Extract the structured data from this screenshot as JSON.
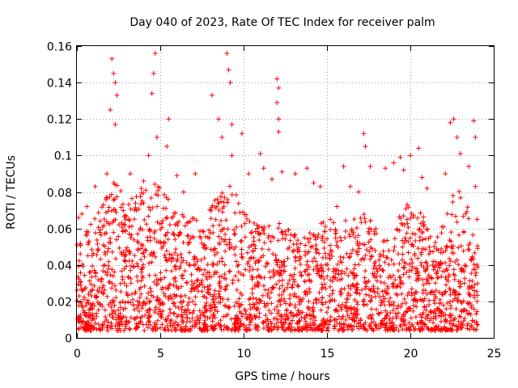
{
  "chart_data": {
    "type": "scatter",
    "title": "Day 040 of 2023, Rate Of TEC Index for receiver palm",
    "xlabel": "GPS time / hours",
    "ylabel": "ROTI / TECUs",
    "xlim": [
      0,
      25
    ],
    "ylim": [
      0,
      0.16
    ],
    "x_ticks": [
      0,
      5,
      10,
      15,
      20,
      25
    ],
    "x_tick_labels": [
      "0",
      "5",
      "10",
      "15",
      "20",
      "25"
    ],
    "y_ticks": [
      0,
      0.02,
      0.04,
      0.06,
      0.08,
      0.1,
      0.12,
      0.14,
      0.16
    ],
    "y_tick_labels": [
      "0",
      "0.02",
      "0.04",
      "0.06",
      "0.08",
      "0.1",
      "0.12",
      "0.14",
      "0.16"
    ],
    "grid": true,
    "marker": "plus",
    "color": "#ff0000",
    "series": [
      {
        "name": "ROTI",
        "points": [
          [
            0.1,
            0.066
          ],
          [
            0.3,
            0.068
          ],
          [
            0.6,
            0.072
          ],
          [
            1.1,
            0.083
          ],
          [
            1.8,
            0.09
          ],
          [
            2.0,
            0.125
          ],
          [
            2.1,
            0.153
          ],
          [
            2.2,
            0.145
          ],
          [
            2.3,
            0.14
          ],
          [
            2.4,
            0.133
          ],
          [
            2.3,
            0.117
          ],
          [
            3.2,
            0.09
          ],
          [
            4.0,
            0.086
          ],
          [
            4.3,
            0.1
          ],
          [
            4.5,
            0.134
          ],
          [
            4.6,
            0.145
          ],
          [
            4.7,
            0.156
          ],
          [
            4.8,
            0.11
          ],
          [
            5.5,
            0.12
          ],
          [
            5.4,
            0.105
          ],
          [
            6.0,
            0.089
          ],
          [
            6.4,
            0.08
          ],
          [
            7.1,
            0.09
          ],
          [
            8.1,
            0.133
          ],
          [
            8.5,
            0.12
          ],
          [
            8.7,
            0.11
          ],
          [
            9.0,
            0.156
          ],
          [
            9.1,
            0.147
          ],
          [
            9.2,
            0.14
          ],
          [
            9.3,
            0.1
          ],
          [
            9.3,
            0.117
          ],
          [
            9.9,
            0.112
          ],
          [
            10.3,
            0.09
          ],
          [
            11.0,
            0.101
          ],
          [
            11.2,
            0.093
          ],
          [
            11.7,
            0.087
          ],
          [
            12.0,
            0.142
          ],
          [
            12.1,
            0.137
          ],
          [
            12.0,
            0.129
          ],
          [
            12.1,
            0.12
          ],
          [
            12.1,
            0.113
          ],
          [
            12.3,
            0.091
          ],
          [
            13.1,
            0.09
          ],
          [
            13.8,
            0.093
          ],
          [
            14.2,
            0.085
          ],
          [
            14.6,
            0.083
          ],
          [
            15.2,
            0.065
          ],
          [
            15.6,
            0.072
          ],
          [
            16.0,
            0.094
          ],
          [
            16.4,
            0.083
          ],
          [
            16.9,
            0.08
          ],
          [
            17.2,
            0.112
          ],
          [
            17.3,
            0.105
          ],
          [
            17.6,
            0.094
          ],
          [
            18.5,
            0.093
          ],
          [
            19.0,
            0.096
          ],
          [
            19.4,
            0.099
          ],
          [
            19.6,
            0.092
          ],
          [
            20.0,
            0.1
          ],
          [
            20.5,
            0.104
          ],
          [
            20.7,
            0.088
          ],
          [
            21.0,
            0.082
          ],
          [
            22.1,
            0.09
          ],
          [
            22.4,
            0.118
          ],
          [
            22.6,
            0.12
          ],
          [
            22.8,
            0.11
          ],
          [
            23.0,
            0.101
          ],
          [
            23.5,
            0.094
          ],
          [
            23.8,
            0.119
          ],
          [
            23.9,
            0.11
          ],
          [
            23.9,
            0.083
          ],
          [
            24.0,
            0.065
          ]
        ]
      }
    ]
  }
}
